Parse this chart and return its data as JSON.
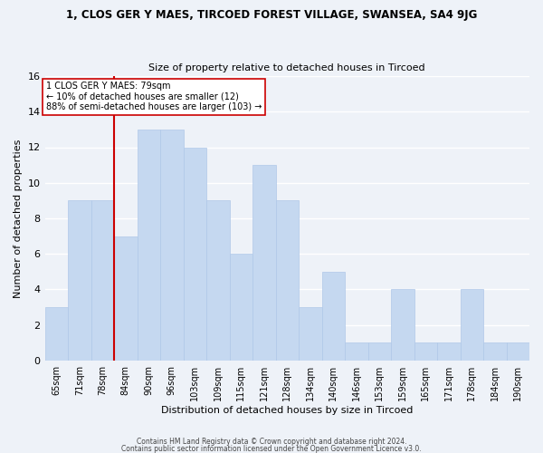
{
  "title": "1, CLOS GER Y MAES, TIRCOED FOREST VILLAGE, SWANSEA, SA4 9JG",
  "subtitle": "Size of property relative to detached houses in Tircoed",
  "xlabel": "Distribution of detached houses by size in Tircoed",
  "ylabel": "Number of detached properties",
  "bin_labels": [
    "65sqm",
    "71sqm",
    "78sqm",
    "84sqm",
    "90sqm",
    "96sqm",
    "103sqm",
    "109sqm",
    "115sqm",
    "121sqm",
    "128sqm",
    "134sqm",
    "140sqm",
    "146sqm",
    "153sqm",
    "159sqm",
    "165sqm",
    "171sqm",
    "178sqm",
    "184sqm",
    "190sqm"
  ],
  "bar_values": [
    3,
    9,
    9,
    7,
    13,
    13,
    12,
    9,
    6,
    11,
    9,
    3,
    5,
    1,
    1,
    4,
    1,
    1,
    4,
    1,
    1
  ],
  "bar_color": "#c5d8f0",
  "bar_edge_color": "#b0c8e8",
  "highlight_line_color": "#cc0000",
  "highlight_line_index": 2,
  "annotation_text": "1 CLOS GER Y MAES: 79sqm\n← 10% of detached houses are smaller (12)\n88% of semi-detached houses are larger (103) →",
  "annotation_box_color": "#ffffff",
  "annotation_box_edge": "#cc0000",
  "ylim": [
    0,
    16
  ],
  "yticks": [
    0,
    2,
    4,
    6,
    8,
    10,
    12,
    14,
    16
  ],
  "footer_line1": "Contains HM Land Registry data © Crown copyright and database right 2024.",
  "footer_line2": "Contains public sector information licensed under the Open Government Licence v3.0.",
  "background_color": "#eef2f8",
  "grid_color": "#ffffff",
  "title_fontsize": 8.5,
  "subtitle_fontsize": 8,
  "tick_fontsize": 7,
  "ylabel_fontsize": 8,
  "xlabel_fontsize": 8
}
